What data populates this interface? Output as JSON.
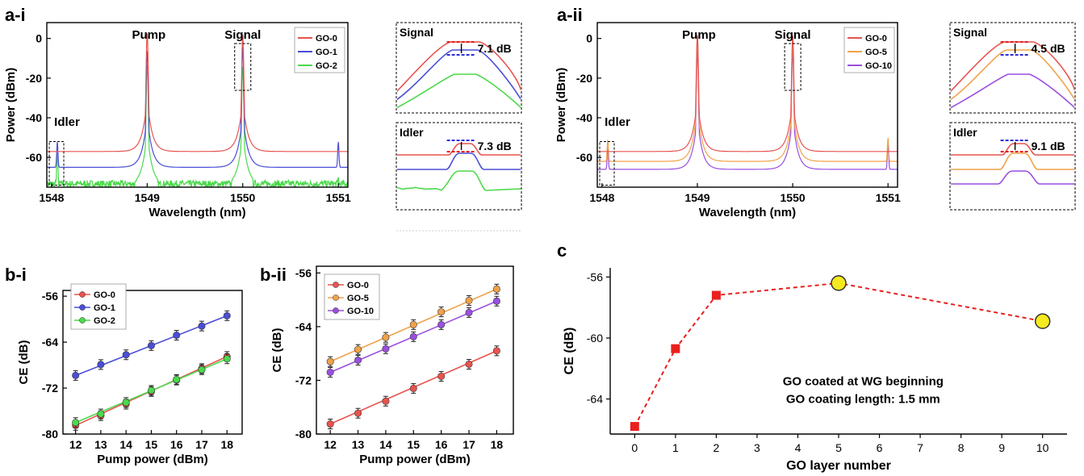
{
  "chart_data": [
    {
      "id": "a-i",
      "panel_label": "a-i",
      "type": "line",
      "xlabel": "Wavelength (nm)",
      "ylabel": "Power (dBm)",
      "xlim": [
        1547.95,
        1551.1
      ],
      "ylim": [
        -75,
        8
      ],
      "xticks": [
        "1548",
        "1549",
        "1550",
        "1551"
      ],
      "yticks": [
        "0",
        "-20",
        "-40",
        "-60"
      ],
      "annotations": [
        "Pump",
        "Signal",
        "Idler"
      ],
      "series": [
        {
          "name": "GO-0",
          "color": "#e8534f",
          "baseline": -57,
          "peaks": [
            {
              "x": 1548.06,
              "y": -57
            },
            {
              "x": 1549.0,
              "y": 3
            },
            {
              "x": 1550.0,
              "y": 2
            },
            {
              "x": 1551.0,
              "y": -58
            }
          ]
        },
        {
          "name": "GO-1",
          "color": "#4a4ed6",
          "baseline": -65,
          "peaks": [
            {
              "x": 1548.06,
              "y": -52
            },
            {
              "x": 1549.0,
              "y": -6
            },
            {
              "x": 1550.0,
              "y": -4
            },
            {
              "x": 1551.0,
              "y": -52
            }
          ]
        },
        {
          "name": "GO-2",
          "color": "#4cd94c",
          "baseline": -74,
          "noisy": true,
          "peaks": [
            {
              "x": 1548.06,
              "y": -57
            },
            {
              "x": 1549.0,
              "y": -13
            },
            {
              "x": 1550.0,
              "y": -14
            },
            {
              "x": 1551.0,
              "y": -70
            }
          ]
        }
      ],
      "insets": [
        {
          "name": "signal-inset",
          "label": "Signal",
          "value": "7.1 dB"
        },
        {
          "name": "idler-inset",
          "label": "Idler",
          "value": "7.3 dB"
        }
      ]
    },
    {
      "id": "a-ii",
      "panel_label": "a-ii",
      "type": "line",
      "xlabel": "Wavelength (nm)",
      "ylabel": "Power (dBm)",
      "xlim": [
        1547.95,
        1551.1
      ],
      "ylim": [
        -75,
        8
      ],
      "xticks": [
        "1548",
        "1549",
        "1550",
        "1551"
      ],
      "yticks": [
        "0",
        "-20",
        "-40",
        "-60"
      ],
      "annotations": [
        "Pump",
        "Signal",
        "Idler"
      ],
      "series": [
        {
          "name": "GO-0",
          "color": "#e8534f",
          "baseline": -57,
          "peaks": [
            {
              "x": 1548.06,
              "y": -57
            },
            {
              "x": 1549.0,
              "y": 2
            },
            {
              "x": 1550.0,
              "y": 2
            },
            {
              "x": 1551.0,
              "y": -57
            }
          ]
        },
        {
          "name": "GO-5",
          "color": "#f0a24a",
          "baseline": -62,
          "peaks": [
            {
              "x": 1548.06,
              "y": -51
            },
            {
              "x": 1549.0,
              "y": 1
            },
            {
              "x": 1550.0,
              "y": -1
            },
            {
              "x": 1551.0,
              "y": -50
            }
          ]
        },
        {
          "name": "GO-10",
          "color": "#9a4fe0",
          "baseline": -66,
          "peaks": [
            {
              "x": 1548.06,
              "y": -55
            },
            {
              "x": 1549.0,
              "y": -6
            },
            {
              "x": 1550.0,
              "y": -6
            },
            {
              "x": 1551.0,
              "y": -52
            }
          ]
        }
      ],
      "insets": [
        {
          "name": "signal-inset",
          "label": "Signal",
          "value": "4.5 dB"
        },
        {
          "name": "idler-inset",
          "label": "Idler",
          "value": "9.1 dB"
        }
      ]
    },
    {
      "id": "b-i",
      "panel_label": "b-i",
      "type": "line",
      "xlabel": "Pump power (dBm)",
      "ylabel": "CE (dB)",
      "xlim": [
        11.5,
        18.6
      ],
      "ylim": [
        -80,
        -55
      ],
      "xticks": [
        "12",
        "13",
        "14",
        "15",
        "16",
        "17",
        "18"
      ],
      "yticks": [
        "-56",
        "-64",
        "-72",
        "-80"
      ],
      "x": [
        12,
        13,
        14,
        15,
        16,
        17,
        18
      ],
      "series": [
        {
          "name": "GO-0",
          "color": "#e8534f",
          "values": [
            -78.5,
            -76.8,
            -74.8,
            -72.6,
            -70.6,
            -68.6,
            -66.5
          ]
        },
        {
          "name": "GO-1",
          "color": "#4a4ed6",
          "values": [
            -69.8,
            -67.9,
            -66.2,
            -64.6,
            -62.8,
            -61.2,
            -59.4
          ]
        },
        {
          "name": "GO-2",
          "color": "#4cd94c",
          "values": [
            -78.0,
            -76.5,
            -74.5,
            -72.4,
            -70.5,
            -68.8,
            -66.9
          ]
        }
      ]
    },
    {
      "id": "b-ii",
      "panel_label": "b-ii",
      "type": "line",
      "xlabel": "Pump power (dBm)",
      "ylabel": "CE (dB)",
      "xlim": [
        11.5,
        18.6
      ],
      "ylim": [
        -80,
        -55
      ],
      "xticks": [
        "12",
        "13",
        "14",
        "15",
        "16",
        "17",
        "18"
      ],
      "yticks": [
        "-56",
        "-64",
        "-72",
        "-80"
      ],
      "x": [
        12,
        13,
        14,
        15,
        16,
        17,
        18
      ],
      "series": [
        {
          "name": "GO-0",
          "color": "#e8534f",
          "values": [
            -78.5,
            -76.9,
            -75.1,
            -73.2,
            -71.4,
            -69.6,
            -67.6
          ]
        },
        {
          "name": "GO-5",
          "color": "#f0a24a",
          "values": [
            -69.2,
            -67.4,
            -65.6,
            -63.7,
            -61.8,
            -60.1,
            -58.4
          ]
        },
        {
          "name": "GO-10",
          "color": "#9a4fe0",
          "values": [
            -70.8,
            -69.0,
            -67.3,
            -65.5,
            -63.7,
            -61.9,
            -60.2
          ]
        }
      ]
    },
    {
      "id": "c",
      "panel_label": "c",
      "type": "scatter",
      "xlabel": "GO layer number",
      "ylabel": "CE (dB)",
      "xlim": [
        -0.6,
        10.6
      ],
      "ylim": [
        -66.3,
        -55.4
      ],
      "xticks": [
        "0",
        "1",
        "2",
        "3",
        "4",
        "5",
        "6",
        "7",
        "8",
        "9",
        "10"
      ],
      "yticks": [
        "-56",
        "-60",
        "-64"
      ],
      "points": [
        {
          "x": 0,
          "y": -65.8,
          "marker": "square",
          "color": "#e8201e"
        },
        {
          "x": 1,
          "y": -60.7,
          "marker": "square",
          "color": "#e8201e"
        },
        {
          "x": 2,
          "y": -57.2,
          "marker": "square",
          "color": "#e8201e"
        },
        {
          "x": 5,
          "y": -56.4,
          "marker": "circle",
          "color": "#f4ea1e"
        },
        {
          "x": 10,
          "y": -58.9,
          "marker": "circle",
          "color": "#f4ea1e"
        }
      ],
      "annotations": [
        "GO coated at WG beginning",
        "GO coating length: 1.5 mm"
      ]
    }
  ]
}
